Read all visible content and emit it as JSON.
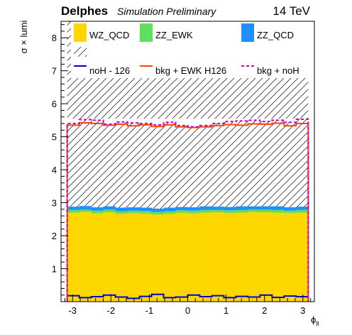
{
  "header": {
    "title": "Delphes",
    "subtitle": "Simulation Preliminary",
    "energy": "14 TeV"
  },
  "chart_data": {
    "type": "bar",
    "xlabel": "ϕ_ll",
    "ylabel": "σ × lumi",
    "xlim": [
      -3.3,
      3.3
    ],
    "ylim": [
      0,
      8.5
    ],
    "grid": false,
    "legend_position": "top",
    "x_ticks": [
      "-3",
      "-2",
      "-1",
      "0",
      "1",
      "2",
      "3"
    ],
    "y_ticks": [
      "1",
      "2",
      "3",
      "4",
      "5",
      "6",
      "7",
      "8"
    ],
    "bin_edges": [
      -3.14,
      -2.826,
      -2.512,
      -2.198,
      -1.884,
      -1.57,
      -1.256,
      -0.942,
      -0.628,
      -0.314,
      0.0,
      0.314,
      0.628,
      0.942,
      1.256,
      1.57,
      1.884,
      2.198,
      2.512,
      2.826,
      3.14
    ],
    "legend": [
      {
        "label": "WZ_QCD",
        "color": "#ffd700",
        "kind": "fill"
      },
      {
        "label": "ZZ_EWK",
        "color": "#5ee05e",
        "kind": "fill"
      },
      {
        "label": "ZZ_QCD",
        "color": "#1e90ff",
        "kind": "fill"
      },
      {
        "label": "",
        "kind": "hatch"
      },
      {
        "label": "noH - 126",
        "color": "#0000cc",
        "kind": "line"
      },
      {
        "label": "bkg + EWK H126",
        "color": "#ff4500",
        "kind": "line"
      },
      {
        "label": "bkg + noH",
        "color": "#cc00cc",
        "kind": "dashed"
      }
    ],
    "series": [
      {
        "name": "WZ_QCD",
        "color": "#ffd700",
        "values": [
          2.7,
          2.72,
          2.68,
          2.71,
          2.66,
          2.69,
          2.67,
          2.64,
          2.66,
          2.7,
          2.68,
          2.7,
          2.71,
          2.69,
          2.7,
          2.72,
          2.71,
          2.7,
          2.69,
          2.7
        ]
      },
      {
        "name": "ZZ_EWK",
        "color": "#5ee05e",
        "values": [
          0.08,
          0.07,
          0.08,
          0.08,
          0.08,
          0.07,
          0.08,
          0.08,
          0.08,
          0.07,
          0.08,
          0.08,
          0.07,
          0.08,
          0.08,
          0.07,
          0.08,
          0.08,
          0.07,
          0.08
        ]
      },
      {
        "name": "ZZ_QCD",
        "color": "#1e90ff",
        "values": [
          0.1,
          0.11,
          0.1,
          0.1,
          0.11,
          0.1,
          0.1,
          0.1,
          0.11,
          0.1,
          0.1,
          0.11,
          0.1,
          0.1,
          0.11,
          0.1,
          0.1,
          0.11,
          0.1,
          0.1
        ]
      },
      {
        "name": "noH - 126",
        "color": "#0000cc",
        "values": [
          0.18,
          0.12,
          0.15,
          0.2,
          0.14,
          0.1,
          0.16,
          0.22,
          0.12,
          0.14,
          0.2,
          0.15,
          0.18,
          0.12,
          0.16,
          0.14,
          0.2,
          0.13,
          0.17,
          0.15
        ]
      },
      {
        "name": "bkg + EWK H126",
        "color": "#ff4500",
        "values": [
          5.35,
          5.42,
          5.4,
          5.35,
          5.38,
          5.33,
          5.36,
          5.31,
          5.36,
          5.3,
          5.28,
          5.3,
          5.34,
          5.37,
          5.35,
          5.39,
          5.38,
          5.41,
          5.33,
          5.4
        ]
      },
      {
        "name": "bkg + noH",
        "color": "#cc00cc",
        "values": [
          5.4,
          5.52,
          5.5,
          5.38,
          5.45,
          5.42,
          5.4,
          5.36,
          5.44,
          5.34,
          5.3,
          5.34,
          5.4,
          5.46,
          5.48,
          5.5,
          5.46,
          5.5,
          5.44,
          5.53
        ]
      }
    ]
  }
}
